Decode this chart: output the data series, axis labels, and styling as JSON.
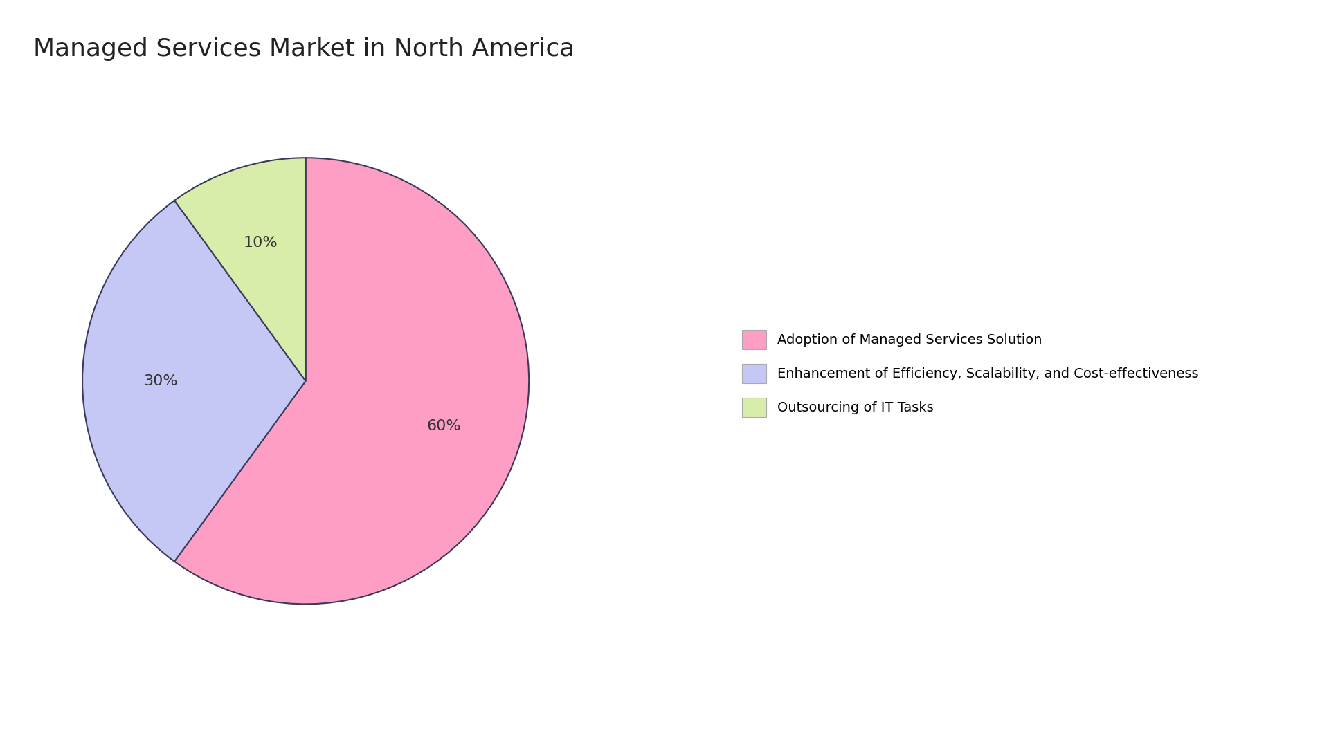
{
  "title": "Managed Services Market in North America",
  "slices": [
    60,
    30,
    10
  ],
  "labels": [
    "Adoption of Managed Services Solution",
    "Enhancement of Efficiency, Scalability, and Cost-effectiveness",
    "Outsourcing of IT Tasks"
  ],
  "colors": [
    "#FF9EC4",
    "#C5C8F5",
    "#D8EDAA"
  ],
  "autopct_labels": [
    "60%",
    "30%",
    "10%"
  ],
  "edge_color": "#3a3a5c",
  "background_color": "#ffffff",
  "title_fontsize": 26,
  "autopct_fontsize": 16,
  "legend_fontsize": 14,
  "startangle": 90
}
